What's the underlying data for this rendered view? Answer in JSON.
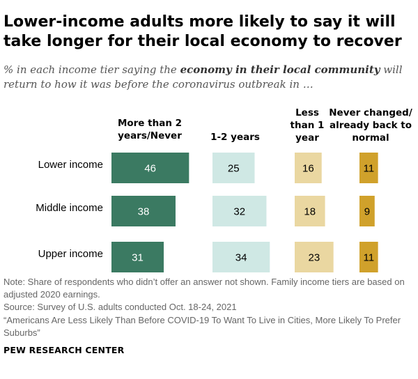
{
  "header": {
    "title": "Lower-income adults more likely to say it will take longer for their local economy to recover",
    "subtitle_pre": "% in each income tier saying the ",
    "subtitle_bold": "economy in their local community",
    "subtitle_post": " will return to how it was before the coronavirus outbreak in …"
  },
  "chart_data": {
    "type": "bar",
    "title": "Lower-income adults more likely to say it will take longer for their local economy to recover",
    "categories": [
      "Lower income",
      "Middle income",
      "Upper income"
    ],
    "series": [
      {
        "name": "More than 2 years/Never",
        "color": "#3b7a62",
        "label_color": "#ffffff",
        "values": [
          46,
          38,
          31
        ]
      },
      {
        "name": "1-2 years",
        "color": "#cfe8e4",
        "label_color": "#000000",
        "values": [
          25,
          32,
          34
        ]
      },
      {
        "name": "Less than 1 year",
        "color": "#ead7a1",
        "label_color": "#000000",
        "values": [
          16,
          18,
          23
        ]
      },
      {
        "name": "Never changed/ already back to normal",
        "color": "#d0a12b",
        "label_color": "#000000",
        "values": [
          11,
          9,
          11
        ]
      }
    ],
    "column_headers": [
      "More than 2 years/Never",
      "1-2 years",
      "Less than 1 year",
      "Never changed/ already back to normal"
    ],
    "unit": "%",
    "legend": "column headers above bars"
  },
  "footer": {
    "note": "Note: Share of respondents who didn’t offer an answer not shown. Family income tiers are based on adjusted 2020 earnings.",
    "source": "Source: Survey of U.S. adults conducted Oct. 18-24, 2021",
    "report": "“Americans Are Less Likely Than Before COVID-19 To Want To Live in Cities, More Likely To Prefer Suburbs”",
    "brand": "PEW RESEARCH CENTER"
  }
}
